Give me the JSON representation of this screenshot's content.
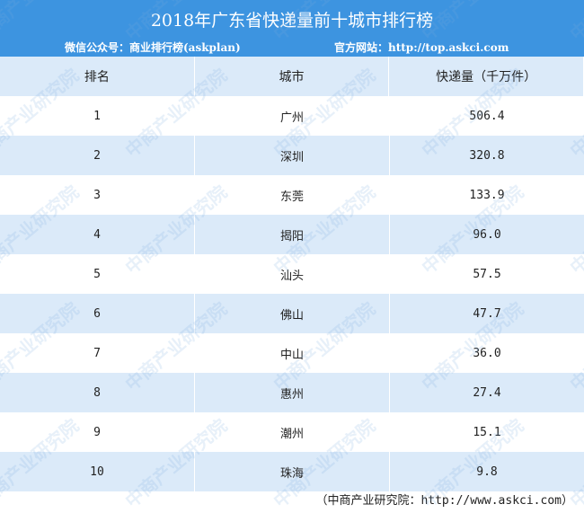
{
  "header": {
    "title": "2018年广东省快递量前十城市排行榜",
    "wechat": "微信公众号：商业排行榜(askplan)",
    "website": "官方网站：http://top.askci.com"
  },
  "columns": [
    "排名",
    "城市",
    "快递量（千万件）"
  ],
  "rows": [
    {
      "rank": "1",
      "city": "广州",
      "volume": "506.4"
    },
    {
      "rank": "2",
      "city": "深圳",
      "volume": "320.8"
    },
    {
      "rank": "3",
      "city": "东莞",
      "volume": "133.9"
    },
    {
      "rank": "4",
      "city": "揭阳",
      "volume": "96.0"
    },
    {
      "rank": "5",
      "city": "汕头",
      "volume": "57.5"
    },
    {
      "rank": "6",
      "city": "佛山",
      "volume": "47.7"
    },
    {
      "rank": "7",
      "city": "中山",
      "volume": "36.0"
    },
    {
      "rank": "8",
      "city": "惠州",
      "volume": "27.4"
    },
    {
      "rank": "9",
      "city": "潮州",
      "volume": "15.1"
    },
    {
      "rank": "10",
      "city": "珠海",
      "volume": "9.8"
    }
  ],
  "footer": "（中商产业研究院：http://www.askci.com）",
  "watermark": "中商产业研究院",
  "colors": {
    "header_blue": "#3d94e0",
    "alt_row": "#dbeaf9"
  }
}
